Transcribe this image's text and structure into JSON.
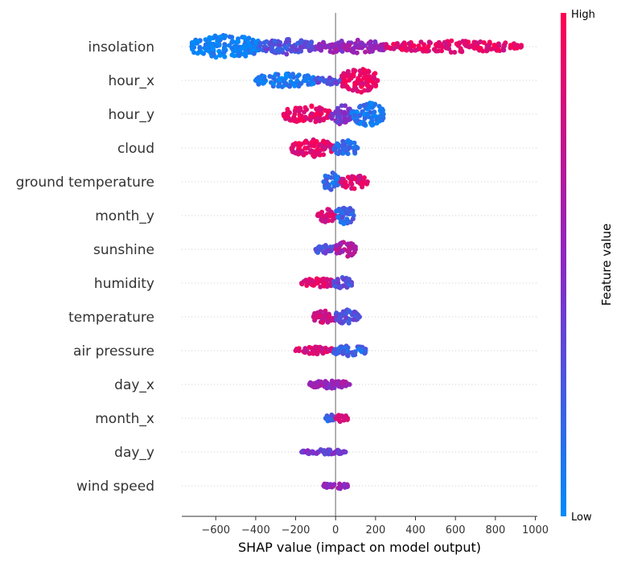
{
  "chart_data": {
    "type": "scatter",
    "subtype": "shap-beeswarm-summary",
    "xlabel": "SHAP value (impact on model output)",
    "xlim": [
      -770,
      1010
    ],
    "x_ticks": [
      -600,
      -400,
      -200,
      0,
      200,
      400,
      600,
      800,
      1000
    ],
    "x_tick_labels": [
      "−600",
      "−400",
      "−200",
      "0",
      "200",
      "400",
      "600",
      "800",
      "1000"
    ],
    "colorbar": {
      "title": "Feature value",
      "high_label": "High",
      "low_label": "Low",
      "low_color": "#008bfb",
      "mid_color": "#8a28c4",
      "high_color": "#ff0052"
    },
    "zero_line_color": "#999999",
    "features": [
      {
        "name": "insolation",
        "min": -720,
        "max": 930,
        "spread": 0.95,
        "segments": [
          {
            "x0": -720,
            "x1": -380,
            "w": 0.95,
            "c": 0.05
          },
          {
            "x0": -380,
            "x1": -100,
            "w": 0.6,
            "c": 0.3
          },
          {
            "x0": -100,
            "x1": 250,
            "w": 0.55,
            "c": 0.55
          },
          {
            "x0": 250,
            "x1": 930,
            "w": 0.45,
            "c": 0.88
          }
        ]
      },
      {
        "name": "hour_x",
        "min": -400,
        "max": 210,
        "spread": 0.95,
        "segments": [
          {
            "x0": -400,
            "x1": -100,
            "w": 0.55,
            "c": 0.08
          },
          {
            "x0": -100,
            "x1": 30,
            "w": 0.35,
            "c": 0.3
          },
          {
            "x0": 30,
            "x1": 210,
            "w": 0.95,
            "c": 0.9
          }
        ]
      },
      {
        "name": "hour_y",
        "min": -260,
        "max": 240,
        "spread": 0.95,
        "segments": [
          {
            "x0": -260,
            "x1": -30,
            "w": 0.7,
            "c": 0.9
          },
          {
            "x0": -30,
            "x1": 80,
            "w": 0.8,
            "c": 0.45
          },
          {
            "x0": 80,
            "x1": 240,
            "w": 0.95,
            "c": 0.1
          }
        ]
      },
      {
        "name": "cloud",
        "min": -220,
        "max": 110,
        "spread": 0.85,
        "segments": [
          {
            "x0": -220,
            "x1": -10,
            "w": 0.8,
            "c": 0.88
          },
          {
            "x0": -10,
            "x1": 110,
            "w": 0.7,
            "c": 0.15
          }
        ]
      },
      {
        "name": "ground temperature",
        "min": -60,
        "max": 160,
        "spread": 0.85,
        "segments": [
          {
            "x0": -60,
            "x1": 20,
            "w": 0.85,
            "c": 0.15
          },
          {
            "x0": 20,
            "x1": 160,
            "w": 0.6,
            "c": 0.85
          }
        ]
      },
      {
        "name": "month_y",
        "min": -90,
        "max": 90,
        "spread": 0.85,
        "segments": [
          {
            "x0": -90,
            "x1": 0,
            "w": 0.6,
            "c": 0.85
          },
          {
            "x0": 0,
            "x1": 90,
            "w": 0.85,
            "c": 0.2
          }
        ]
      },
      {
        "name": "sunshine",
        "min": -100,
        "max": 100,
        "spread": 0.75,
        "segments": [
          {
            "x0": -100,
            "x1": 0,
            "w": 0.5,
            "c": 0.3
          },
          {
            "x0": 0,
            "x1": 100,
            "w": 0.75,
            "c": 0.65
          }
        ]
      },
      {
        "name": "humidity",
        "min": -170,
        "max": 80,
        "spread": 0.7,
        "segments": [
          {
            "x0": -170,
            "x1": -10,
            "w": 0.55,
            "c": 0.85
          },
          {
            "x0": -10,
            "x1": 80,
            "w": 0.7,
            "c": 0.3
          }
        ]
      },
      {
        "name": "temperature",
        "min": -110,
        "max": 120,
        "spread": 0.75,
        "segments": [
          {
            "x0": -110,
            "x1": 0,
            "w": 0.65,
            "c": 0.8
          },
          {
            "x0": 0,
            "x1": 120,
            "w": 0.75,
            "c": 0.3
          }
        ]
      },
      {
        "name": "air pressure",
        "min": -200,
        "max": 150,
        "spread": 0.65,
        "segments": [
          {
            "x0": -200,
            "x1": -10,
            "w": 0.45,
            "c": 0.85
          },
          {
            "x0": -10,
            "x1": 150,
            "w": 0.65,
            "c": 0.2
          }
        ]
      },
      {
        "name": "day_x",
        "min": -130,
        "max": 70,
        "spread": 0.55,
        "segments": [
          {
            "x0": -130,
            "x1": 70,
            "w": 0.55,
            "c": 0.55
          }
        ]
      },
      {
        "name": "month_x",
        "min": -50,
        "max": 60,
        "spread": 0.55,
        "segments": [
          {
            "x0": -50,
            "x1": 0,
            "w": 0.5,
            "c": 0.2
          },
          {
            "x0": 0,
            "x1": 60,
            "w": 0.55,
            "c": 0.85
          }
        ]
      },
      {
        "name": "day_y",
        "min": -170,
        "max": 50,
        "spread": 0.45,
        "segments": [
          {
            "x0": -170,
            "x1": 50,
            "w": 0.45,
            "c": 0.4
          }
        ]
      },
      {
        "name": "wind speed",
        "min": -60,
        "max": 60,
        "spread": 0.5,
        "segments": [
          {
            "x0": -60,
            "x1": 60,
            "w": 0.5,
            "c": 0.55
          }
        ]
      }
    ]
  }
}
